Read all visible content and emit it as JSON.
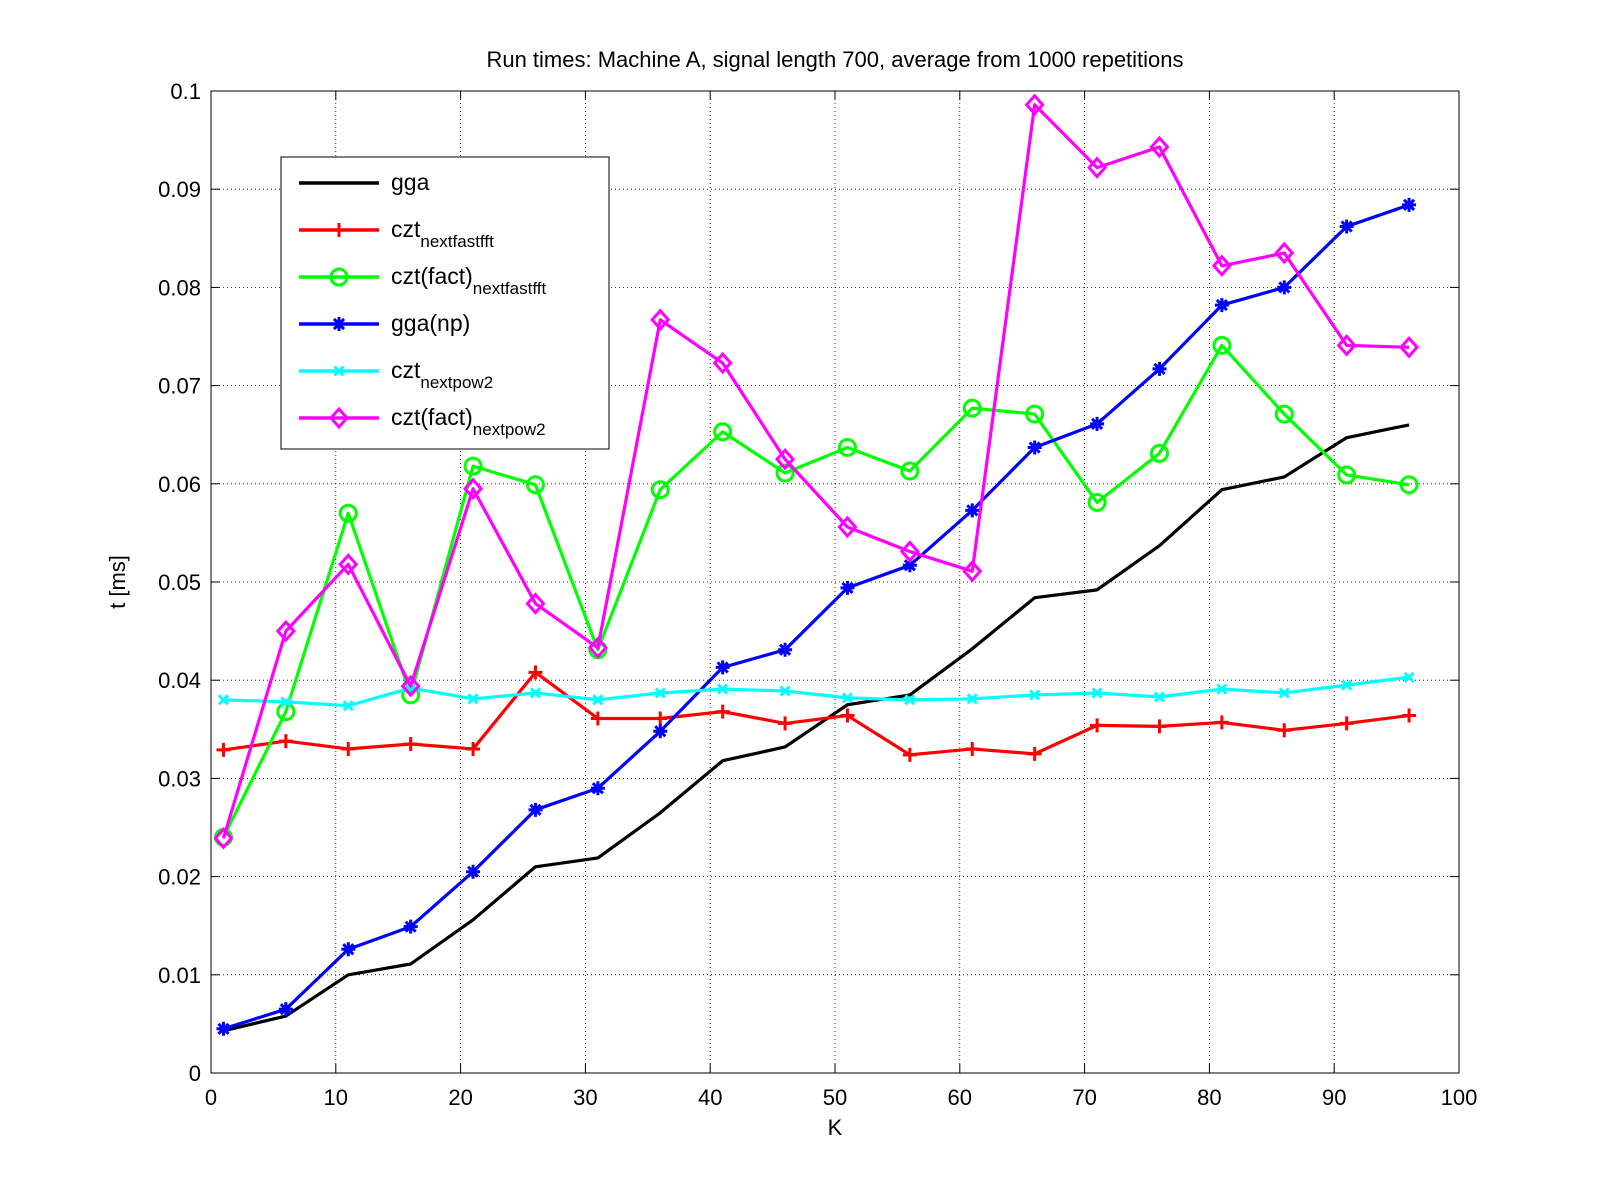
{
  "chart_data": {
    "type": "line",
    "title": "Run times: Machine A, signal length 700, average from 1000 repetitions",
    "xlabel": "K",
    "ylabel": "t [ms]",
    "xlim": [
      0,
      100
    ],
    "ylim": [
      0,
      0.1
    ],
    "xticks": [
      0,
      10,
      20,
      30,
      40,
      50,
      60,
      70,
      80,
      90,
      100
    ],
    "yticks": [
      0,
      0.01,
      0.02,
      0.03,
      0.04,
      0.05,
      0.06,
      0.07,
      0.08,
      0.09,
      0.1
    ],
    "xtick_labels": [
      "0",
      "10",
      "20",
      "30",
      "40",
      "50",
      "60",
      "70",
      "80",
      "90",
      "100"
    ],
    "ytick_labels": [
      "0",
      "0.01",
      "0.02",
      "0.03",
      "0.04",
      "0.05",
      "0.06",
      "0.07",
      "0.08",
      "0.09",
      "0.1"
    ],
    "grid": true,
    "legend_position": "top-left",
    "x": [
      1,
      6,
      11,
      16,
      21,
      26,
      31,
      36,
      41,
      46,
      51,
      56,
      61,
      66,
      71,
      76,
      81,
      86,
      91,
      96
    ],
    "series": [
      {
        "name": "gga",
        "name_sub": "",
        "color": "#000000",
        "marker": "none",
        "values": [
          0.0043,
          0.0058,
          0.01,
          0.0111,
          0.0156,
          0.021,
          0.0219,
          0.0265,
          0.0318,
          0.0332,
          0.0375,
          0.0385,
          0.0432,
          0.0484,
          0.0492,
          0.0537,
          0.0594,
          0.0607,
          0.0647,
          0.066
        ]
      },
      {
        "name": "czt",
        "name_sub": "nextfastfft",
        "color": "#ff0000",
        "marker": "plus",
        "values": [
          0.0329,
          0.0338,
          0.033,
          0.0335,
          0.033,
          0.0408,
          0.0361,
          0.0361,
          0.0368,
          0.0356,
          0.0364,
          0.0324,
          0.033,
          0.0325,
          0.0354,
          0.0353,
          0.0357,
          0.0349,
          0.0356,
          0.0364
        ]
      },
      {
        "name": "czt(fact)",
        "name_sub": "nextfastfft",
        "color": "#00ff00",
        "marker": "circle",
        "values": [
          0.024,
          0.0368,
          0.057,
          0.0385,
          0.0618,
          0.0599,
          0.0431,
          0.0594,
          0.0653,
          0.0611,
          0.0637,
          0.0613,
          0.0677,
          0.0671,
          0.0581,
          0.0631,
          0.0741,
          0.0671,
          0.0609,
          0.0599
        ]
      },
      {
        "name": "gga(np)",
        "name_sub": "",
        "color": "#0000ff",
        "marker": "asterisk",
        "values": [
          0.0045,
          0.0065,
          0.0126,
          0.0149,
          0.0205,
          0.0268,
          0.029,
          0.0348,
          0.0413,
          0.0431,
          0.0494,
          0.0517,
          0.0573,
          0.0637,
          0.0661,
          0.0717,
          0.0782,
          0.08,
          0.0862,
          0.0884
        ]
      },
      {
        "name": "czt",
        "name_sub": "nextpow2",
        "color": "#00ffff",
        "marker": "cross",
        "values": [
          0.038,
          0.0378,
          0.0374,
          0.0392,
          0.0381,
          0.0387,
          0.038,
          0.0387,
          0.0391,
          0.0389,
          0.0382,
          0.038,
          0.0381,
          0.0385,
          0.0387,
          0.0383,
          0.0391,
          0.0387,
          0.0395,
          0.0403
        ]
      },
      {
        "name": "czt(fact)",
        "name_sub": "nextpow2",
        "color": "#ff00ff",
        "marker": "diamond",
        "values": [
          0.0239,
          0.045,
          0.0518,
          0.0394,
          0.0595,
          0.0478,
          0.0433,
          0.0767,
          0.0723,
          0.0625,
          0.0556,
          0.0531,
          0.0511,
          0.0986,
          0.0922,
          0.0943,
          0.0822,
          0.0835,
          0.0741,
          0.0739
        ]
      }
    ]
  }
}
